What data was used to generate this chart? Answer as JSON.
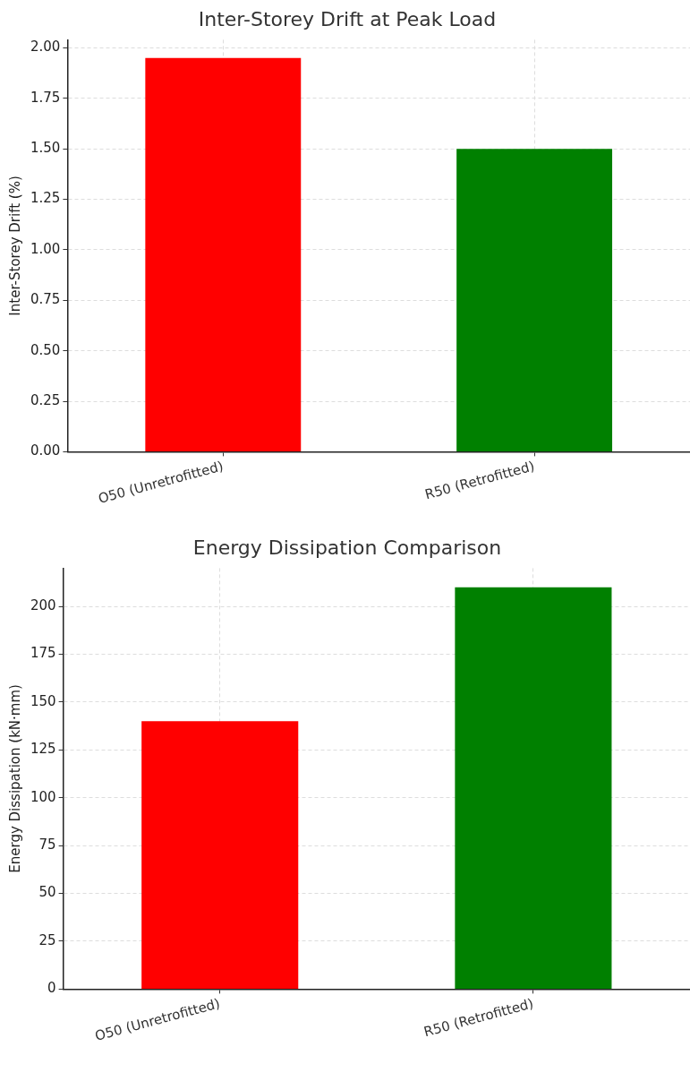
{
  "chart_data": [
    {
      "type": "bar",
      "title": "Inter-Storey Drift at Peak Load",
      "ylabel": "Inter-Storey Drift (%)",
      "categories": [
        "O50 (Unretrofitted)",
        "R50 (Retrofitted)"
      ],
      "values": [
        1.95,
        1.5
      ],
      "colors": [
        "#ff0000",
        "#008000"
      ],
      "ylim": [
        0,
        2.04
      ],
      "yticks": [
        {
          "value": 0,
          "label": "0.00"
        },
        {
          "value": 0.25,
          "label": "0.25"
        },
        {
          "value": 0.5,
          "label": "0.50"
        },
        {
          "value": 0.75,
          "label": "0.75"
        },
        {
          "value": 1,
          "label": "1.00"
        },
        {
          "value": 1.25,
          "label": "1.25"
        },
        {
          "value": 1.5,
          "label": "1.50"
        },
        {
          "value": 1.75,
          "label": "1.75"
        },
        {
          "value": 2,
          "label": "2.00"
        }
      ],
      "grid": true
    },
    {
      "type": "bar",
      "title": "Energy Dissipation Comparison",
      "ylabel": "Energy Dissipation (kN·mm)",
      "categories": [
        "O50 (Unretrofitted)",
        "R50 (Retrofitted)"
      ],
      "values": [
        140,
        210
      ],
      "colors": [
        "#ff0000",
        "#008000"
      ],
      "ylim": [
        0,
        220
      ],
      "yticks": [
        0,
        25,
        50,
        75,
        100,
        125,
        150,
        175,
        200
      ],
      "grid": true
    }
  ]
}
